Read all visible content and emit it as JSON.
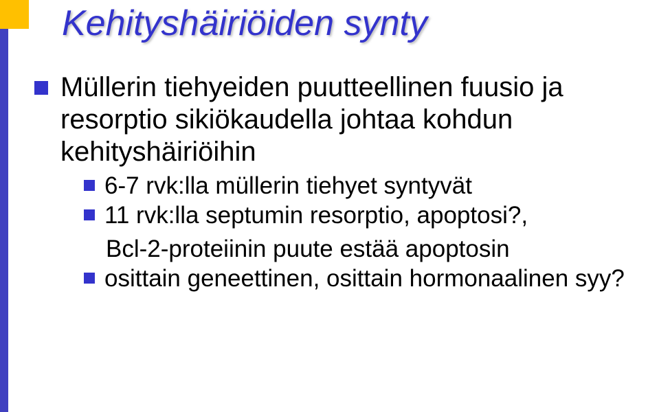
{
  "accent_colors": {
    "corner_square": "#ffc000",
    "side_bar": "#4040c0",
    "title_color": "#3333cc",
    "bullet_color": "#3333cc",
    "body_text_color": "#000000",
    "background_color": "#ffffff"
  },
  "fontsizes": {
    "title": 52,
    "level1": 40,
    "level2": 35
  },
  "title": "Kehityshäiriöiden synty",
  "bullets": {
    "b1": {
      "text": "Müllerin tiehyeiden puutteellinen fuusio ja resorptio sikiökaudella johtaa kohdun kehityshäiriöihin"
    },
    "b2": {
      "text": "6-7 rvk:lla müllerin tiehyet syntyvät"
    },
    "b3": {
      "text": "11 rvk:lla septumin resorptio, apoptosi?,"
    },
    "b3_cont": {
      "text": "Bcl-2-proteiinin puute estää apoptosin"
    },
    "b4": {
      "text": "osittain geneettinen, osittain hormonaalinen syy?"
    }
  }
}
